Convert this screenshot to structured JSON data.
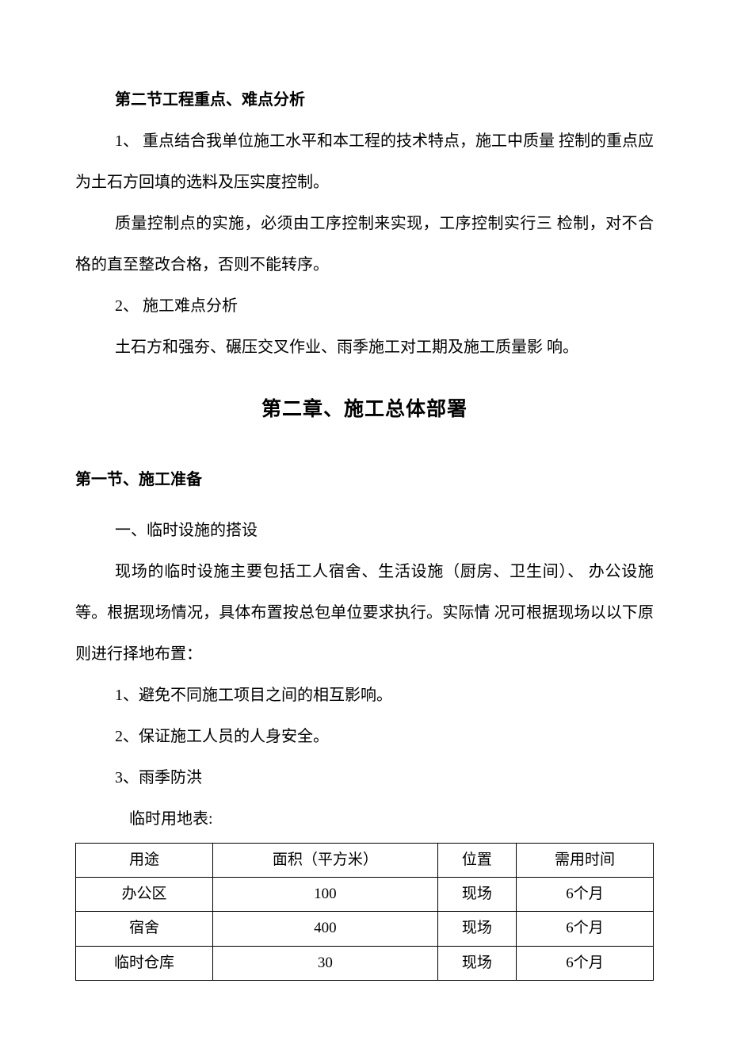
{
  "section2": {
    "title": "第二节工程重点、难点分析",
    "para1": "1、   重点结合我单位施工水平和本工程的技术特点，施工中质量 控制的重点应为土石方回填的选料及压实度控制。",
    "para2": "质量控制点的实施，必须由工序控制来实现，工序控制实行三 检制，对不合格的直至整改合格，否则不能转序。",
    "para3": "2、   施工难点分析",
    "para4": "土石方和强夯、碾压交叉作业、雨季施工对工期及施工质量影 响。"
  },
  "chapter2": {
    "title": "第二章、施工总体部署"
  },
  "section2_1": {
    "title": "第一节、施工准备",
    "subtitle": "一、临时设施的搭设",
    "para1": "现场的临时设施主要包括工人宿舍、生活设施（厨房、卫生间）、 办公设施等。根据现场情况，具体布置按总包单位要求执行。实际情 况可根据现场以以下原则进行择地布置：",
    "item1": "1、避免不同施工项目之间的相互影响。",
    "item2": "2、保证施工人员的人身安全。",
    "item3": "3、雨季防洪",
    "tableTitle": "临时用地表:"
  },
  "table": {
    "headers": [
      "用途",
      "面积（平方米）",
      "位置",
      "需用时间"
    ],
    "rows": [
      [
        "办公区",
        "100",
        "现场",
        "6个月"
      ],
      [
        "宿舍",
        "400",
        "现场",
        "6个月"
      ],
      [
        "临时仓库",
        "30",
        "现场",
        "6个月"
      ]
    ]
  },
  "styles": {
    "background_color": "#ffffff",
    "text_color": "#000000",
    "border_color": "#000000",
    "body_fontsize": 20,
    "chapter_fontsize": 25,
    "table_fontsize": 19,
    "line_height": 2.6
  }
}
